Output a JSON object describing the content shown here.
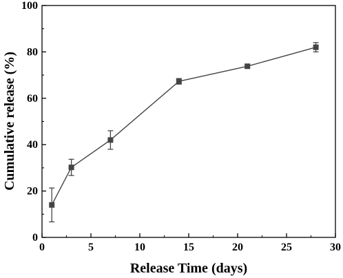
{
  "chart_data": {
    "type": "line",
    "xlabel": "Release Time (days)",
    "ylabel": "Cumulative release (%)",
    "xlim": [
      0,
      30
    ],
    "ylim": [
      0,
      100
    ],
    "x_ticks": [
      0,
      5,
      10,
      15,
      20,
      25,
      30
    ],
    "y_ticks": [
      0,
      20,
      40,
      60,
      80,
      100
    ],
    "x_tick_labels": [
      "0",
      "5",
      "10",
      "15",
      "20",
      "25",
      "30"
    ],
    "y_tick_labels": [
      "0",
      "20",
      "40",
      "60",
      "80",
      "100"
    ],
    "grid": false,
    "series": [
      {
        "x": [
          1,
          3,
          7,
          14,
          21,
          28
        ],
        "values": [
          14,
          30.2,
          42,
          67.3,
          73.8,
          82
        ],
        "error": [
          7.3,
          3.5,
          4,
          1.2,
          0.8,
          2
        ],
        "marker": "square",
        "color": "#444444"
      }
    ]
  }
}
